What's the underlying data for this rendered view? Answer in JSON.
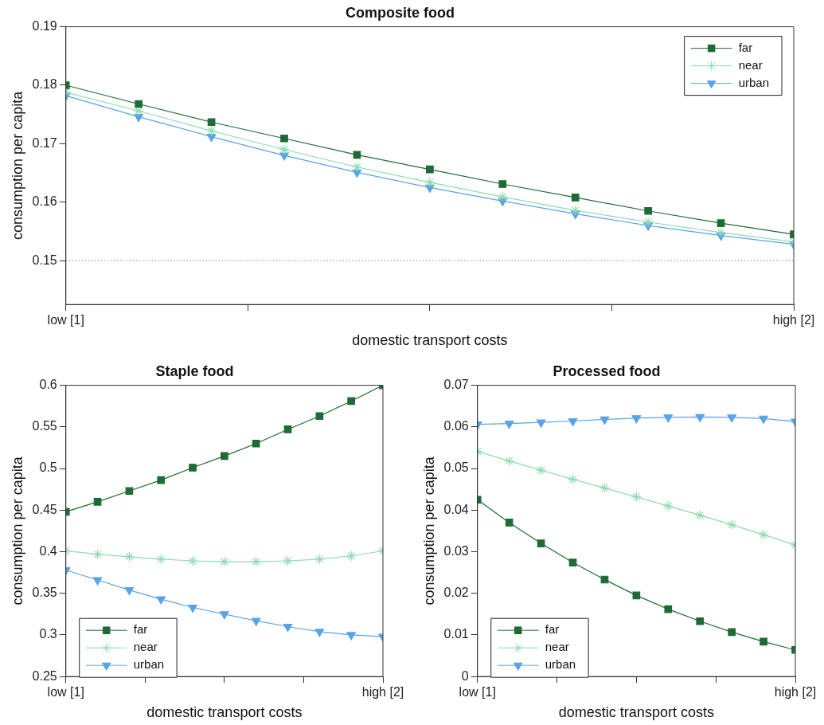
{
  "chart_data": [
    {
      "type": "line",
      "title": "Composite food",
      "xlabel": "domestic transport costs",
      "ylabel": "consumption per capita",
      "x": [
        1,
        1.1,
        1.2,
        1.3,
        1.4,
        1.5,
        1.6,
        1.7,
        1.8,
        1.9,
        2
      ],
      "xlim": [
        1,
        2
      ],
      "xticks": [
        {
          "value": 1,
          "label": "low [1]"
        },
        {
          "value": 1.25,
          "label": null
        },
        {
          "value": 1.5,
          "label": null
        },
        {
          "value": 1.75,
          "label": null
        },
        {
          "value": 2,
          "label": "high [2]"
        }
      ],
      "ylim": [
        0.1425,
        0.19
      ],
      "yticks": [
        0.15,
        0.16,
        0.17,
        0.18,
        0.19
      ],
      "series": [
        {
          "name": "far",
          "color": "#1e6b35",
          "marker": "square",
          "values": [
            0.18,
            0.1768,
            0.1737,
            0.1709,
            0.1681,
            0.1656,
            0.1631,
            0.1608,
            0.1585,
            0.1564,
            0.1545
          ]
        },
        {
          "name": "near",
          "color": "#8fdcb0",
          "marker": "cross",
          "values": [
            0.1788,
            0.1756,
            0.1722,
            0.169,
            0.166,
            0.1634,
            0.1609,
            0.1586,
            0.1566,
            0.1548,
            0.1532
          ]
        },
        {
          "name": "urban",
          "color": "#5aa3e8",
          "marker": "triangle",
          "values": [
            0.1782,
            0.1746,
            0.1712,
            0.168,
            0.1651,
            0.1625,
            0.1602,
            0.158,
            0.156,
            0.1543,
            0.1528
          ]
        }
      ],
      "ref_lines": [
        {
          "axis": "y",
          "value": 0.15,
          "color": "#555555",
          "line_style": "dotted"
        }
      ],
      "legend": "top right",
      "grid": false
    },
    {
      "type": "line",
      "title": "Staple food",
      "xlabel": "domestic transport costs",
      "ylabel": "consumption per capita",
      "x": [
        1,
        1.1,
        1.2,
        1.3,
        1.4,
        1.5,
        1.6,
        1.7,
        1.8,
        1.9,
        2
      ],
      "xlim": [
        1,
        2
      ],
      "xticks": [
        {
          "value": 1,
          "label": "low [1]"
        },
        {
          "value": 1.25,
          "label": null
        },
        {
          "value": 1.5,
          "label": null
        },
        {
          "value": 1.75,
          "label": null
        },
        {
          "value": 2,
          "label": "high [2]"
        }
      ],
      "ylim": [
        0.25,
        0.6
      ],
      "yticks": [
        0.25,
        0.3,
        0.35,
        0.4,
        0.45,
        0.5,
        0.55,
        0.6
      ],
      "series": [
        {
          "name": "far",
          "color": "#1e6b35",
          "marker": "square",
          "values": [
            0.448,
            0.46,
            0.473,
            0.486,
            0.501,
            0.515,
            0.53,
            0.547,
            0.563,
            0.581,
            0.6
          ]
        },
        {
          "name": "near",
          "color": "#8fdcb0",
          "marker": "cross",
          "values": [
            0.401,
            0.397,
            0.394,
            0.391,
            0.389,
            0.388,
            0.388,
            0.389,
            0.391,
            0.395,
            0.401
          ]
        },
        {
          "name": "urban",
          "color": "#5aa3e8",
          "marker": "triangle",
          "values": [
            0.378,
            0.366,
            0.354,
            0.343,
            0.333,
            0.325,
            0.317,
            0.31,
            0.304,
            0.3,
            0.298
          ]
        }
      ],
      "legend": "bottom left",
      "grid": false
    },
    {
      "type": "line",
      "title": "Processed food",
      "xlabel": "domestic transport costs",
      "ylabel": "consumption per capita",
      "x": [
        1,
        1.1,
        1.2,
        1.3,
        1.4,
        1.5,
        1.6,
        1.7,
        1.8,
        1.9,
        2
      ],
      "xlim": [
        1,
        2
      ],
      "xticks": [
        {
          "value": 1,
          "label": "low [1]"
        },
        {
          "value": 1.25,
          "label": null
        },
        {
          "value": 1.5,
          "label": null
        },
        {
          "value": 1.75,
          "label": null
        },
        {
          "value": 2,
          "label": "high [2]"
        }
      ],
      "ylim": [
        0,
        0.07
      ],
      "yticks": [
        0,
        0.01,
        0.02,
        0.03,
        0.04,
        0.05,
        0.06,
        0.07
      ],
      "series": [
        {
          "name": "far",
          "color": "#1e6b35",
          "marker": "square",
          "values": [
            0.0425,
            0.037,
            0.032,
            0.0274,
            0.0233,
            0.0195,
            0.0162,
            0.0133,
            0.0107,
            0.0084,
            0.0064
          ]
        },
        {
          "name": "near",
          "color": "#8fdcb0",
          "marker": "cross",
          "values": [
            0.0541,
            0.0518,
            0.0496,
            0.0474,
            0.0453,
            0.0432,
            0.041,
            0.0388,
            0.0365,
            0.0341,
            0.0316
          ]
        },
        {
          "name": "urban",
          "color": "#5aa3e8",
          "marker": "triangle",
          "values": [
            0.0606,
            0.0608,
            0.0611,
            0.0614,
            0.0618,
            0.0621,
            0.0623,
            0.0624,
            0.0623,
            0.062,
            0.0613
          ]
        }
      ],
      "legend": "bottom left",
      "grid": false
    }
  ]
}
